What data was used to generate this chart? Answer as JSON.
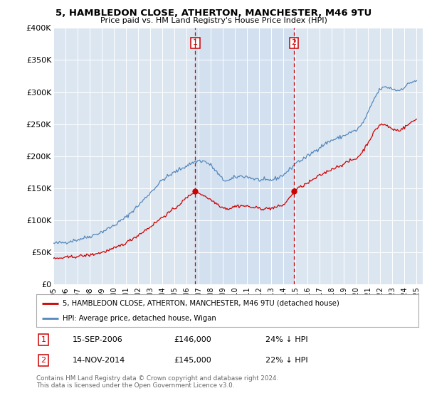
{
  "title1": "5, HAMBLEDON CLOSE, ATHERTON, MANCHESTER, M46 9TU",
  "title2": "Price paid vs. HM Land Registry's House Price Index (HPI)",
  "legend_line1": "5, HAMBLEDON CLOSE, ATHERTON, MANCHESTER, M46 9TU (detached house)",
  "legend_line2": "HPI: Average price, detached house, Wigan",
  "annotation1_date": "15-SEP-2006",
  "annotation1_price": "£146,000",
  "annotation1_hpi": "24% ↓ HPI",
  "annotation2_date": "14-NOV-2014",
  "annotation2_price": "£145,000",
  "annotation2_hpi": "22% ↓ HPI",
  "footer": "Contains HM Land Registry data © Crown copyright and database right 2024.\nThis data is licensed under the Open Government Licence v3.0.",
  "red_color": "#cc0000",
  "blue_color": "#5588bb",
  "shade_color": "#ddeeff",
  "background_color": "#ffffff",
  "plot_bg_color": "#dce6f1",
  "grid_color": "#ffffff",
  "sale1_x": 2006.71,
  "sale1_y": 146000,
  "sale2_x": 2014.87,
  "sale2_y": 145000,
  "vline1_x": 2006.71,
  "vline2_x": 2014.87,
  "yticks": [
    0,
    50000,
    100000,
    150000,
    200000,
    250000,
    300000,
    350000,
    400000
  ],
  "ylim_max": 400000,
  "xmin": 1995,
  "xmax": 2025.5
}
